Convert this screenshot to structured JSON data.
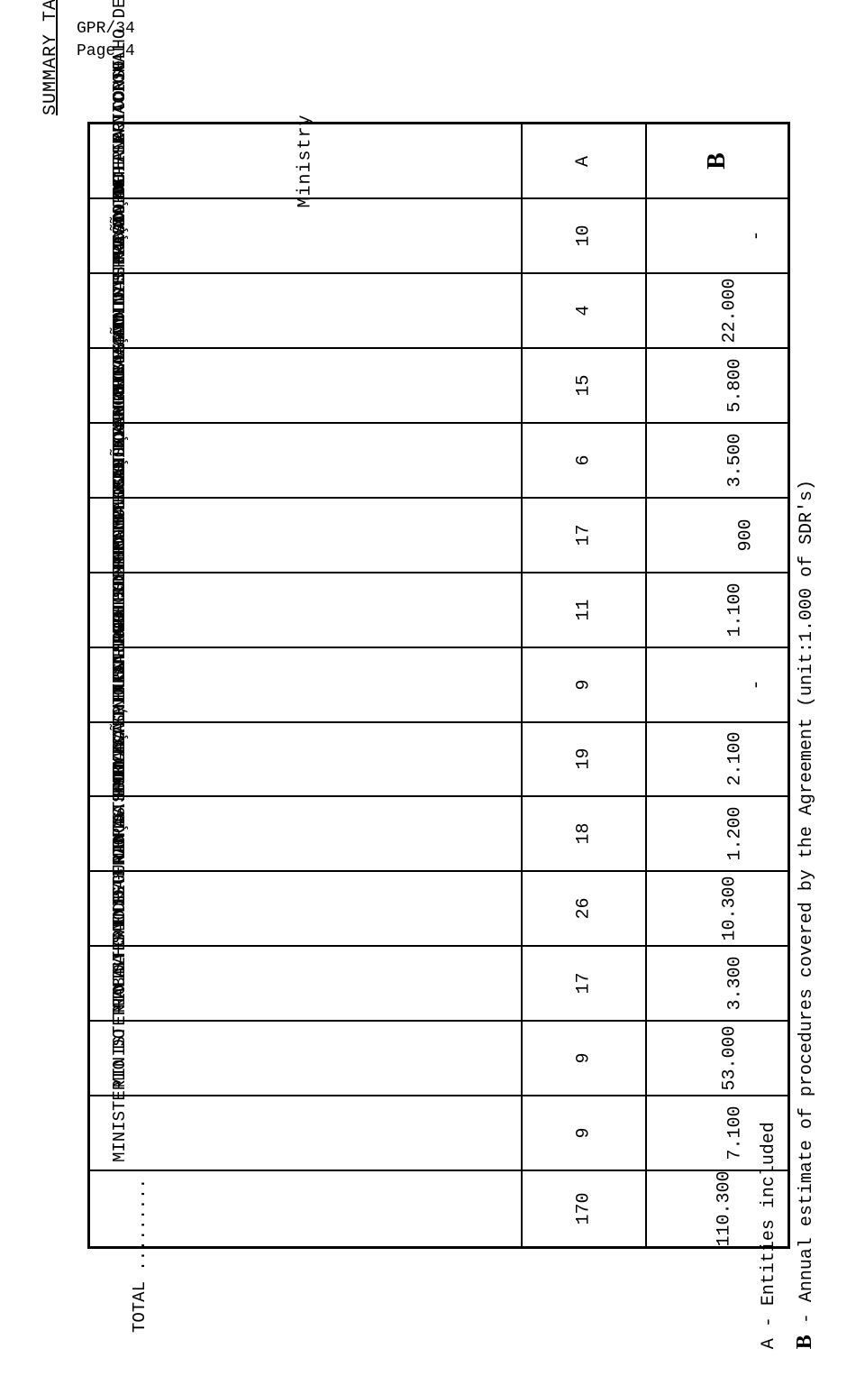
{
  "header": {
    "doc_ref": "GPR/34",
    "page": "Page 4"
  },
  "title": "SUMMARY TABLE",
  "table": {
    "headers": {
      "ministry": "Ministry",
      "col_a": "A",
      "col_b": "B"
    },
    "rows": [
      {
        "ministry": "PRESIDENCIA DO CONSELHO DE MINISTROS",
        "a": "10",
        "b": "-"
      },
      {
        "ministry": "MINISTERIO DA DEFESA NACIONAL",
        "a": "4",
        "b": "22.000"
      },
      {
        "ministry": "MINISTERIO DAS FINANÇAS",
        "a": "15",
        "b": "5.800"
      },
      {
        "ministry": "MINISTERIO DA ADMINISTRAÇÃO INTERNA",
        "a": "6",
        "b": "3.500"
      },
      {
        "ministry": "MINISTERIO DO PLANO E ADMINISTRAÇÃO DO TERRITORIO",
        "a": "17",
        "b": "900"
      },
      {
        "ministry": "MINISTERIO DA JUSTIÇA",
        "a": "11",
        "b": "1.100"
      },
      {
        "ministry": "MINISTERIO DOS NEGOCIOS ESTRANGEIROS",
        "a": "9",
        "b": "-"
      },
      {
        "ministry": "MINISTERIO DA AGRICULTURA PESCAS E ALIMENTAÇÃO",
        "a": "19",
        "b": "2.100"
      },
      {
        "ministry": "MINISTERIO DA INDUSTRIA E COMERCIO",
        "a": "18",
        "b": "1.200"
      },
      {
        "ministry": "MINISTERIO DA EDUCAÇÃO E CULTURA",
        "a": "26",
        "b": "10.300"
      },
      {
        "ministry": "MINISTERIO DAS OBRAS PUBLICAS, TRANSPORTES E COMUNICAÇÕES",
        "a": "17",
        "b": "3.300"
      },
      {
        "ministry": "MINISTERIO DA SAUDE",
        "a": "9",
        "b": "53.000"
      },
      {
        "ministry": "MINISTERIO DO TRABALHO E SEGURANÇA SOCIAL",
        "a": "9",
        "b": "7.100"
      }
    ],
    "total": {
      "label": "TOTAL .........",
      "a": "170",
      "b": "110.300"
    }
  },
  "legend": {
    "a_label": "A",
    "a_desc": "- Entities included",
    "b_label": "B",
    "b_desc": "- Annual estimate of procedures covered by the Agreement (unit:1.000 of SDR's)"
  },
  "style": {
    "background": "#ffffff",
    "text_color": "#000000",
    "border_color": "#000000",
    "font_family": "Courier New",
    "base_fontsize": 20,
    "header_b_fontsize": 28
  }
}
